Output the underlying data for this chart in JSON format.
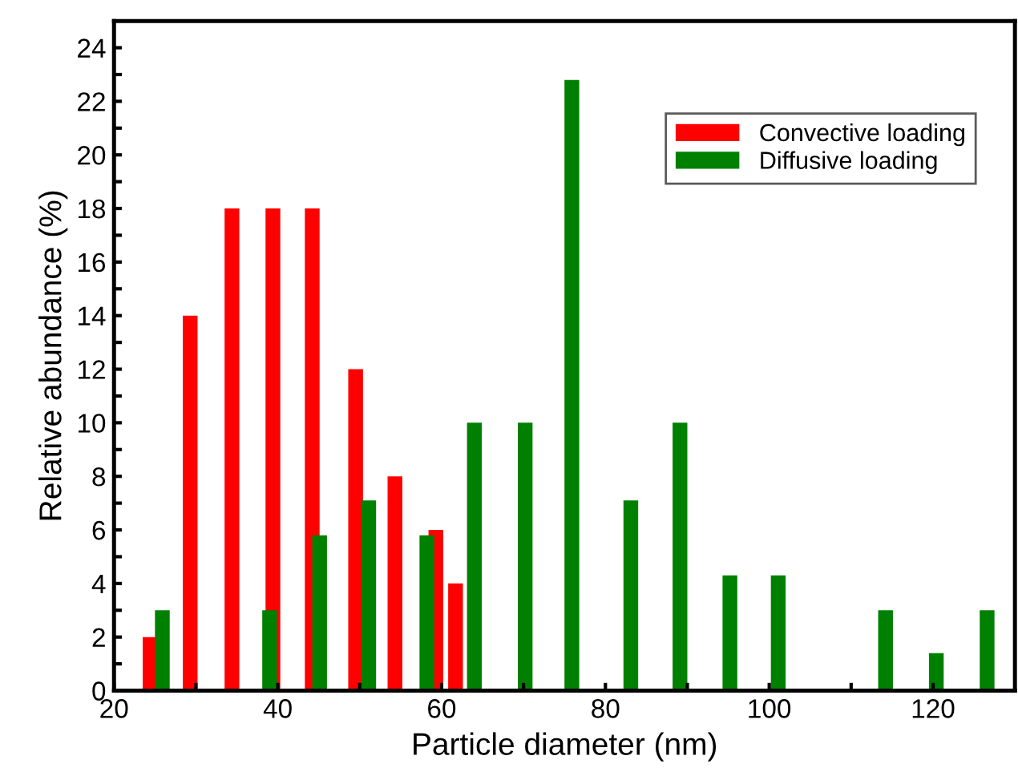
{
  "chart_data": {
    "type": "bar",
    "xlabel": "Particle diameter (nm)",
    "ylabel": "Relative abundance (%)",
    "series": [
      {
        "name": "Convective loading",
        "color": "#ff0000",
        "x": [
          24.4,
          29.3,
          34.4,
          39.4,
          44.2,
          49.5,
          54.3,
          59.3,
          61.7
        ],
        "values": [
          2,
          14,
          18,
          18,
          18,
          12,
          8,
          6,
          4
        ]
      },
      {
        "name": "Diffusive loading",
        "color": "#008000",
        "x": [
          25.9,
          39.0,
          45.1,
          51.1,
          58.2,
          64.0,
          70.2,
          75.9,
          83.1,
          89.1,
          95.2,
          101.1,
          114.2,
          120.4,
          126.6
        ],
        "values": [
          3,
          3,
          5.8,
          7.1,
          5.8,
          10,
          10,
          22.8,
          7.1,
          10,
          4.3,
          4.3,
          3,
          1.4,
          3
        ]
      }
    ],
    "xlim": [
      20,
      130
    ],
    "ylim": [
      0,
      25
    ],
    "xticks": [
      20,
      {
        "value": 30,
        "label": null
      },
      40,
      {
        "value": 50,
        "label": null
      },
      60,
      {
        "value": 70,
        "label": null
      },
      80,
      {
        "value": 90,
        "label": null
      },
      100,
      {
        "value": 110,
        "label": null
      },
      120
    ],
    "yticks": [
      0,
      {
        "value": 1,
        "label": null
      },
      2,
      {
        "value": 3,
        "label": null
      },
      4,
      {
        "value": 5,
        "label": null
      },
      6,
      {
        "value": 7,
        "label": null
      },
      8,
      {
        "value": 9,
        "label": null
      },
      10,
      {
        "value": 11,
        "label": null
      },
      12,
      {
        "value": 13,
        "label": null
      },
      14,
      {
        "value": 15,
        "label": null
      },
      16,
      {
        "value": 17,
        "label": null
      },
      18,
      {
        "value": 19,
        "label": null
      },
      20,
      {
        "value": 21,
        "label": null
      },
      22,
      {
        "value": 23,
        "label": null
      },
      24
    ],
    "grid": false,
    "legend": "top right"
  }
}
